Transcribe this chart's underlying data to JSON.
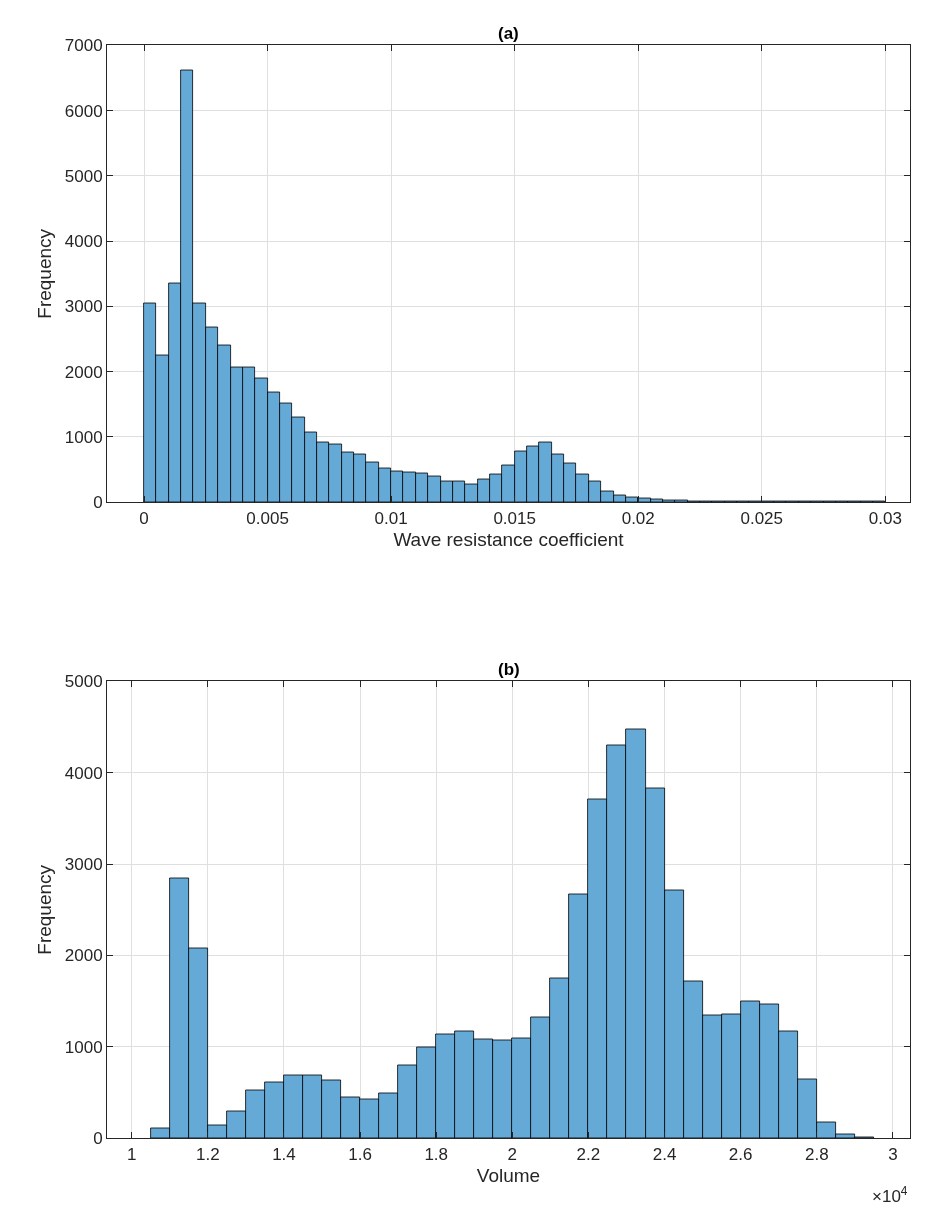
{
  "chart_data": [
    {
      "type": "histogram",
      "title": "(a)",
      "xlabel": "Wave resistance coefficient",
      "ylabel": "Frequency",
      "color": "#65a9d7",
      "grid": true,
      "bins": [
        0,
        0.0005,
        0.001,
        0.0015,
        0.002,
        0.0025,
        0.003,
        0.0035,
        0.004,
        0.0045,
        0.005,
        0.0055,
        0.006,
        0.0065,
        0.007,
        0.0075,
        0.008,
        0.0085,
        0.009,
        0.0095,
        0.01,
        0.0105,
        0.011,
        0.0115,
        0.012,
        0.0125,
        0.013,
        0.0135,
        0.014,
        0.0145,
        0.015,
        0.0155,
        0.016,
        0.0165,
        0.017,
        0.0175,
        0.018,
        0.0185,
        0.019,
        0.0195,
        0.02,
        0.0205,
        0.021,
        0.0215,
        0.022,
        0.0225,
        0.023,
        0.0235,
        0.024,
        0.0245,
        0.025,
        0.0255,
        0.026,
        0.0265,
        0.027,
        0.0275,
        0.028,
        0.0285,
        0.029,
        0.0295,
        0.03
      ],
      "values": [
        3050,
        2250,
        3360,
        6620,
        3040,
        2680,
        2410,
        2070,
        2070,
        1900,
        1680,
        1520,
        1300,
        1070,
        920,
        890,
        770,
        730,
        610,
        520,
        470,
        450,
        440,
        400,
        320,
        320,
        270,
        350,
        420,
        560,
        780,
        850,
        910,
        730,
        600,
        420,
        320,
        170,
        110,
        70,
        60,
        40,
        30,
        20,
        10,
        10,
        10,
        10,
        10,
        10,
        10,
        10,
        10,
        10,
        10,
        10,
        10,
        10,
        10,
        10
      ],
      "xlim": [
        -0.0015,
        0.031
      ],
      "ylim": [
        0,
        7000
      ],
      "xticks": [
        0,
        0.005,
        0.01,
        0.015,
        0.02,
        0.025,
        0.03
      ],
      "yticks": [
        0,
        1000,
        2000,
        3000,
        4000,
        5000,
        6000,
        7000
      ]
    },
    {
      "type": "histogram",
      "title": "(b)",
      "xlabel": "Volume",
      "ylabel": "Frequency",
      "color": "#65a9d7",
      "grid": true,
      "annotations": [
        "×10$^{4}$"
      ],
      "bins": [
        1.05,
        1.1,
        1.15,
        1.2,
        1.25,
        1.3,
        1.35,
        1.4,
        1.45,
        1.5,
        1.55,
        1.6,
        1.65,
        1.7,
        1.75,
        1.8,
        1.85,
        1.9,
        1.95,
        2.0,
        2.05,
        2.1,
        2.15,
        2.2,
        2.25,
        2.3,
        2.35,
        2.4,
        2.45,
        2.5,
        2.55,
        2.6,
        2.65,
        2.7,
        2.75,
        2.8,
        2.85,
        2.9,
        2.95
      ],
      "values": [
        110,
        2840,
        2080,
        140,
        290,
        520,
        610,
        690,
        690,
        630,
        450,
        420,
        490,
        800,
        990,
        1140,
        1170,
        1080,
        1070,
        1090,
        1320,
        1750,
        2670,
        3710,
        4300,
        4480,
        3830,
        2710,
        1720,
        1340,
        1360,
        1500,
        1470,
        1170,
        640,
        170,
        40,
        10
      ],
      "xlim": [
        0.935,
        3.045
      ],
      "ylim": [
        0,
        5000
      ],
      "xticks": [
        1,
        1.2,
        1.4,
        1.6,
        1.8,
        2,
        2.2,
        2.4,
        2.6,
        2.8,
        3
      ],
      "yticks": [
        0,
        1000,
        2000,
        3000,
        4000,
        5000
      ]
    }
  ]
}
